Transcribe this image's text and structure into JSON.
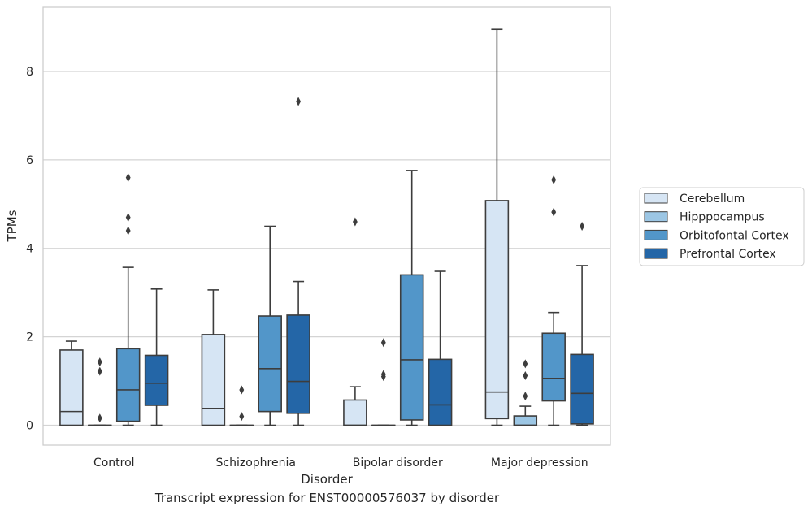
{
  "caption": "Transcript expression for ENST00000576037 by disorder",
  "chart_data": {
    "type": "box",
    "xlabel": "Disorder",
    "ylabel": "TPMs",
    "ylim": [
      -0.45,
      9.45
    ],
    "yticks": [
      0,
      2,
      4,
      6,
      8
    ],
    "categories": [
      "Control",
      "Schizophrenia",
      "Bipolar disorder",
      "Major depression"
    ],
    "grid": "horizontal",
    "legend_position": "right",
    "series": [
      {
        "name": "Cerebellum",
        "color": "#d6e5f4",
        "boxes": [
          {
            "whisker_low": 0.0,
            "q1": 0.0,
            "median": 0.31,
            "q3": 1.7,
            "whisker_high": 1.9,
            "outliers": []
          },
          {
            "whisker_low": 0.0,
            "q1": 0.0,
            "median": 0.38,
            "q3": 2.05,
            "whisker_high": 3.06,
            "outliers": []
          },
          {
            "whisker_low": 0.0,
            "q1": 0.0,
            "median": 0.0,
            "q3": 0.57,
            "whisker_high": 0.87,
            "outliers": [
              4.6
            ]
          },
          {
            "whisker_low": 0.0,
            "q1": 0.15,
            "median": 0.75,
            "q3": 5.08,
            "whisker_high": 8.95,
            "outliers": []
          }
        ]
      },
      {
        "name": "Hipppocampus",
        "color": "#9cc6e4",
        "boxes": [
          {
            "whisker_low": 0.0,
            "q1": 0.0,
            "median": 0.0,
            "q3": 0.0,
            "whisker_high": 0.0,
            "outliers": [
              0.16,
              1.22,
              1.43
            ]
          },
          {
            "whisker_low": 0.0,
            "q1": 0.0,
            "median": 0.0,
            "q3": 0.0,
            "whisker_high": 0.0,
            "outliers": [
              0.2,
              0.8
            ]
          },
          {
            "whisker_low": 0.0,
            "q1": 0.0,
            "median": 0.0,
            "q3": 0.0,
            "whisker_high": 0.0,
            "outliers": [
              1.1,
              1.15,
              1.87
            ]
          },
          {
            "whisker_low": 0.0,
            "q1": 0.0,
            "median": 0.0,
            "q3": 0.21,
            "whisker_high": 0.43,
            "outliers": [
              0.66,
              1.12,
              1.39
            ]
          }
        ]
      },
      {
        "name": "Orbitofontal Cortex",
        "color": "#5296c9",
        "boxes": [
          {
            "whisker_low": 0.0,
            "q1": 0.09,
            "median": 0.8,
            "q3": 1.73,
            "whisker_high": 3.57,
            "outliers": [
              4.4,
              4.7,
              5.6
            ]
          },
          {
            "whisker_low": 0.0,
            "q1": 0.31,
            "median": 1.28,
            "q3": 2.47,
            "whisker_high": 4.5,
            "outliers": []
          },
          {
            "whisker_low": 0.0,
            "q1": 0.12,
            "median": 1.48,
            "q3": 3.4,
            "whisker_high": 5.76,
            "outliers": []
          },
          {
            "whisker_low": 0.0,
            "q1": 0.55,
            "median": 1.06,
            "q3": 2.08,
            "whisker_high": 2.55,
            "outliers": [
              4.82,
              5.55
            ]
          }
        ]
      },
      {
        "name": "Prefrontal Cortex",
        "color": "#2466a7",
        "boxes": [
          {
            "whisker_low": 0.0,
            "q1": 0.45,
            "median": 0.95,
            "q3": 1.58,
            "whisker_high": 3.08,
            "outliers": []
          },
          {
            "whisker_low": 0.0,
            "q1": 0.27,
            "median": 0.99,
            "q3": 2.49,
            "whisker_high": 3.25,
            "outliers": [
              7.32
            ]
          },
          {
            "whisker_low": 0.0,
            "q1": 0.0,
            "median": 0.46,
            "q3": 1.49,
            "whisker_high": 3.48,
            "outliers": []
          },
          {
            "whisker_low": 0.0,
            "q1": 0.03,
            "median": 0.72,
            "q3": 1.6,
            "whisker_high": 3.61,
            "outliers": [
              4.5
            ]
          }
        ]
      }
    ]
  }
}
